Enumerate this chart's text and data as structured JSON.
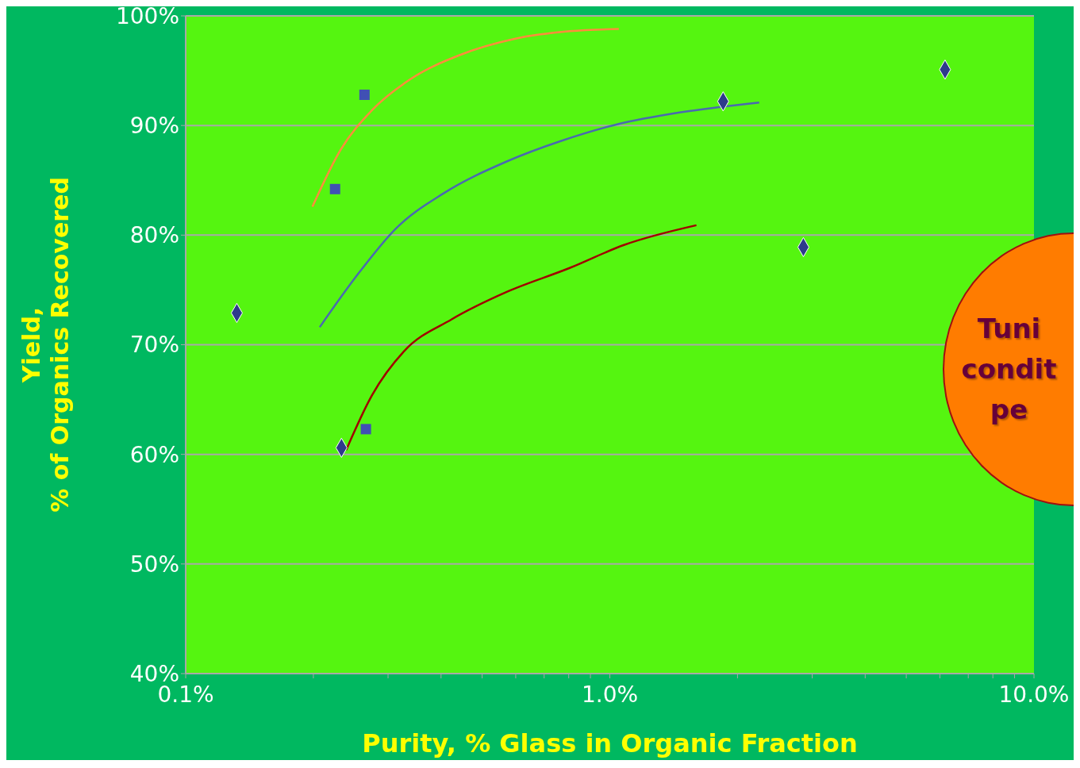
{
  "chart_data": {
    "type": "scatter",
    "xlabel": "Purity, % Glass in Organic Fraction",
    "ylabel": "Yield,\n% of Organics Recovered",
    "log": "x",
    "grid": "y",
    "xlim": [
      0.1,
      10
    ],
    "xticks": [
      {
        "value": 0.1,
        "label": "0.1%"
      },
      {
        "value": 0.2,
        "label": null
      },
      {
        "value": 0.3,
        "label": null
      },
      {
        "value": 0.4,
        "label": null
      },
      {
        "value": 0.5,
        "label": null
      },
      {
        "value": 0.6,
        "label": null
      },
      {
        "value": 0.7,
        "label": null
      },
      {
        "value": 0.8,
        "label": null
      },
      {
        "value": 0.9,
        "label": null
      },
      {
        "value": 1,
        "label": "1.0%"
      },
      {
        "value": 2,
        "label": null
      },
      {
        "value": 3,
        "label": null
      },
      {
        "value": 4,
        "label": null
      },
      {
        "value": 5,
        "label": null
      },
      {
        "value": 6,
        "label": null
      },
      {
        "value": 7,
        "label": null
      },
      {
        "value": 8,
        "label": null
      },
      {
        "value": 9,
        "label": null
      },
      {
        "value": 10,
        "label": "10.0%"
      }
    ],
    "ylim": [
      40,
      100
    ],
    "yticks": [
      {
        "value": 40,
        "label": "40%"
      },
      {
        "value": 50,
        "label": "50%"
      },
      {
        "value": 60,
        "label": "60%"
      },
      {
        "value": 70,
        "label": "70%"
      },
      {
        "value": 80,
        "label": "80%"
      },
      {
        "value": 90,
        "label": "90%"
      },
      {
        "value": 100,
        "label": "100%"
      }
    ],
    "series": [
      {
        "marker": "diamond",
        "color": "#2e3a8c",
        "x": [
          0.132,
          0.233,
          1.85,
          2.86,
          6.17
        ],
        "values": [
          72.9,
          60.6,
          92.2,
          78.9,
          95.1
        ]
      },
      {
        "marker": "square",
        "color": "#4050b4",
        "x": [
          0.264,
          0.225,
          0.266
        ],
        "values": [
          92.8,
          84.2,
          62.3
        ]
      },
      {
        "type": "line",
        "marker": "none",
        "line_style": "solid",
        "color": "#ff8c3c",
        "x": [
          0.199,
          0.232,
          0.275,
          0.341,
          0.441,
          0.596,
          0.804,
          1.05
        ],
        "values": [
          82.6,
          87.8,
          91.4,
          94.3,
          96.4,
          97.9,
          98.6,
          98.8
        ]
      },
      {
        "type": "line",
        "marker": "none",
        "line_style": "solid",
        "color": "#4a6ab0",
        "x": [
          0.207,
          0.252,
          0.313,
          0.405,
          0.57,
          0.769,
          1.04,
          1.47,
          2.25
        ],
        "values": [
          71.6,
          76.2,
          80.6,
          83.8,
          86.7,
          88.6,
          90.1,
          91.2,
          92.1
        ]
      },
      {
        "type": "line",
        "marker": "none",
        "line_style": "solid",
        "color": "#a00000",
        "x": [
          0.239,
          0.275,
          0.327,
          0.423,
          0.57,
          0.804,
          1.08,
          1.6
        ],
        "values": [
          60.4,
          65.4,
          69.4,
          72.3,
          74.8,
          77.0,
          79.1,
          80.9
        ]
      }
    ],
    "annotations": [
      "Tuni\ncondit\npe"
    ]
  }
}
